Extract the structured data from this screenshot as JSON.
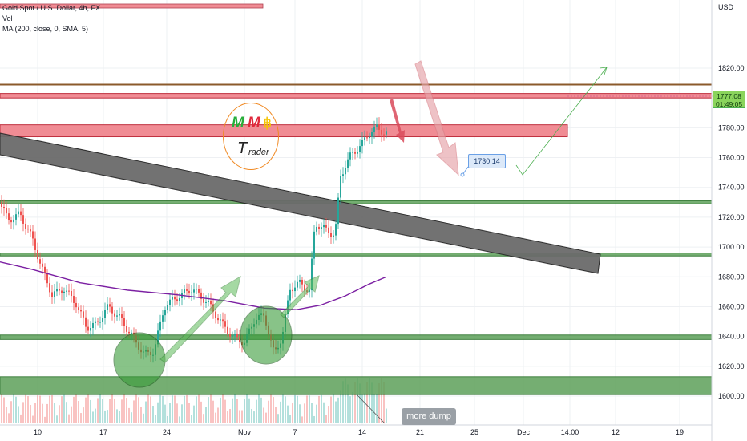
{
  "legend": {
    "symbol": "Gold Spot / U.S. Dollar, 4h, FX",
    "volume": "Vol",
    "ma": "MA (200, close, 0, SMA, 5)"
  },
  "chart_data": {
    "type": "candlestick",
    "currency": "USD",
    "y_ticks": [
      1600,
      1620,
      1640,
      1660,
      1680,
      1700,
      1720,
      1740,
      1760,
      1780,
      1800,
      1820
    ],
    "ylim": [
      1588,
      1832
    ],
    "x_ticks": [
      "10",
      "17",
      "24",
      "Nov",
      "7",
      "14",
      "21",
      "25",
      "Dec",
      "14:00",
      "12",
      "19"
    ],
    "last_price": "1777.08",
    "countdown": "01:49:05",
    "callout_price": "1730.14",
    "note": "more dump",
    "logo": {
      "m1": "M",
      "m2": "M",
      "b": "฿",
      "t": "T",
      "r": "rader"
    },
    "zones": {
      "resistance": [
        [
          1800,
          1803
        ],
        [
          1774,
          1782
        ]
      ],
      "support": [
        [
          1729,
          1731
        ],
        [
          1694,
          1696
        ],
        [
          1638,
          1641
        ],
        [
          1601,
          1613
        ]
      ],
      "lines": [
        1809
      ]
    },
    "colors": {
      "resistance": "#f08c94",
      "support": "#5da15a",
      "bull": "#26a69a",
      "bear": "#ef5350",
      "ma": "#7b1fa2"
    }
  }
}
